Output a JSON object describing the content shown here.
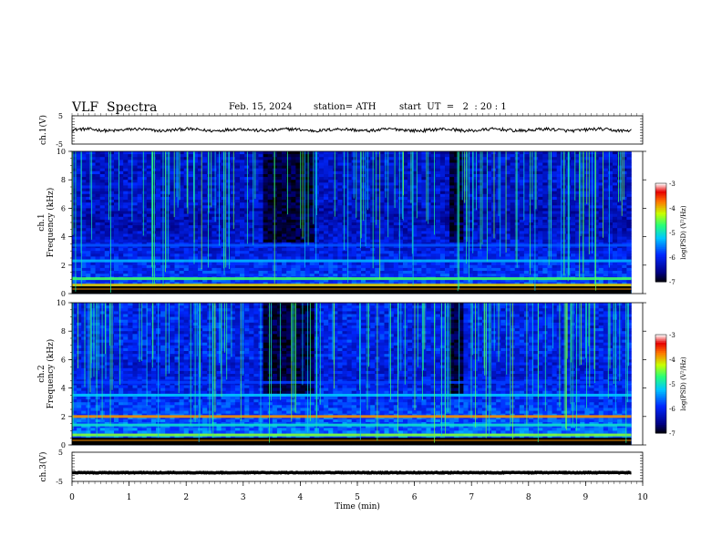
{
  "header": {
    "title": "VLF  Spectra",
    "date": "Feb. 15, 2024",
    "station": "station= ATH",
    "start_ut": "start  UT  =   2  : 20 : 1"
  },
  "chart_data": [
    {
      "type": "line",
      "id": "ch1-waveform",
      "ylabel": "ch.1(V)",
      "ylim": [
        -5,
        5
      ],
      "yticks": [
        "5",
        "-5"
      ],
      "description_values": "noisy waveform around ~0 V, amplitude ~ +/-0.6 V",
      "x": [
        0,
        9.8
      ],
      "baseline": 0.0
    },
    {
      "type": "heatmap",
      "id": "ch1-spectrogram",
      "ylabel": "ch.1\nFrequency  (kHz)",
      "ylim": [
        0,
        10
      ],
      "yticks": [
        "0",
        "2",
        "4",
        "6",
        "8",
        "10"
      ],
      "xlim": [
        0,
        10
      ],
      "data_extent_min": 9.8,
      "colorbar": {
        "label": "log(PSD) (V²/Hz)",
        "range": [
          -7,
          -3
        ],
        "ticks": [
          "-3",
          "-4",
          "-5",
          "-6",
          "-7"
        ]
      },
      "bands_khz": [
        {
          "f": 2.3,
          "level": -5.3
        },
        {
          "f": 1.05,
          "level": -4.6
        },
        {
          "f": 0.6,
          "level": -4.0
        },
        {
          "f": 3.4,
          "level": -5.7
        }
      ],
      "dark_intervals_min": [
        [
          3.3,
          4.2
        ],
        [
          6.6,
          6.8
        ]
      ]
    },
    {
      "type": "heatmap",
      "id": "ch2-spectrogram",
      "ylabel": "ch.2\nFrequency  (kHz)",
      "ylim": [
        0,
        10
      ],
      "yticks": [
        "0",
        "2",
        "4",
        "6",
        "8",
        "10"
      ],
      "xlim": [
        0,
        10
      ],
      "data_extent_min": 9.8,
      "colorbar": {
        "label": "log(PSD) (V²/Hz)",
        "range": [
          -7,
          -3
        ],
        "ticks": [
          "-3",
          "-4",
          "-5",
          "-6",
          "-7"
        ]
      },
      "bands_khz": [
        {
          "f": 2.0,
          "level": -3.8
        },
        {
          "f": 1.4,
          "level": -5.0
        },
        {
          "f": 3.5,
          "level": -5.2
        },
        {
          "f": 4.4,
          "level": -5.8
        },
        {
          "f": 0.7,
          "level": -4.4
        }
      ],
      "dark_intervals_min": [
        [
          3.3,
          4.2
        ],
        [
          6.6,
          6.8
        ]
      ]
    },
    {
      "type": "line",
      "id": "ch3-waveform",
      "ylabel": "ch.3(V)",
      "ylim": [
        -5,
        5
      ],
      "yticks": [
        "5",
        "-5"
      ],
      "x": [
        0,
        9.8
      ],
      "baseline": -2.0,
      "xlabel": "Time  (min)",
      "xticks": [
        "0",
        "1",
        "2",
        "3",
        "4",
        "5",
        "6",
        "7",
        "8",
        "9",
        "10"
      ]
    }
  ]
}
